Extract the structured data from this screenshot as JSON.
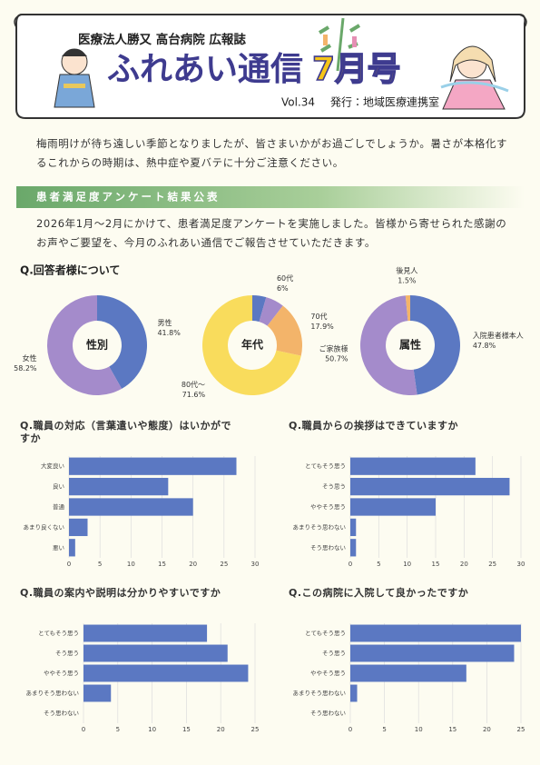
{
  "header": {
    "org": "医療法人勝又 高台病院 広報誌",
    "title": "ふれあい通信",
    "issue": "7月号",
    "volume": "Vol.34",
    "publisher": "発行：地域医療連携室"
  },
  "intro": "梅雨明けが待ち遠しい季節となりましたが、皆さまいかがお過ごしでしょうか。暑さが本格化するこれからの時期は、熱中症や夏バテに十分ご注意ください。",
  "section": {
    "title": "患者満足度アンケート結果公表",
    "text": "2026年1月〜2月にかけて、患者満足度アンケートを実施しました。皆様から寄せられた感謝のお声やご要望を、今月のふれあい通信でご報告させていただきます。",
    "subheading": "Q.回答者様について"
  },
  "chart_data": [
    {
      "type": "pie",
      "title": "性別",
      "categories": [
        "男性",
        "女性"
      ],
      "values": [
        41.8,
        58.2
      ],
      "value_labels": [
        "41.8%",
        "58.2%"
      ],
      "colors": [
        "#5b78c2",
        "#a48bcb"
      ]
    },
    {
      "type": "pie",
      "title": "年代",
      "categories": [
        null,
        "60代",
        "70代",
        "80代～"
      ],
      "values": [
        4.5,
        6,
        17.9,
        71.6
      ],
      "value_labels": [
        null,
        "6%",
        "17.9%",
        "71.6%"
      ],
      "colors": [
        "#5b78c2",
        "#a48bcb",
        "#f3b46a",
        "#f9dc5c"
      ]
    },
    {
      "type": "pie",
      "title": "属性",
      "categories": [
        "入院患者様本人",
        "ご家族様",
        "後見人"
      ],
      "values": [
        47.8,
        50.7,
        1.5
      ],
      "value_labels": [
        "47.8%",
        "50.7%",
        "1.5%"
      ],
      "colors": [
        "#5b78c2",
        "#a48bcb",
        "#f3b46a"
      ]
    },
    {
      "type": "bar",
      "orientation": "horizontal",
      "title": "Q.職員の対応（言葉遣いや態度）はいかがですか",
      "categories": [
        "大変良い",
        "良い",
        "普通",
        "あまり良くない",
        "悪い"
      ],
      "values": [
        27,
        16,
        20,
        3,
        1
      ],
      "color": "#5b78c2",
      "xlim": [
        0,
        30
      ],
      "xticks": [
        0,
        5,
        10,
        15,
        20,
        25,
        30
      ],
      "grid": true
    },
    {
      "type": "bar",
      "orientation": "horizontal",
      "title": "Q.職員からの挨拶はできていますか",
      "categories": [
        "とてもそう思う",
        "そう思う",
        "ややそう思う",
        "あまりそう思わない",
        "そう思わない"
      ],
      "values": [
        22,
        28,
        15,
        1,
        1
      ],
      "color": "#5b78c2",
      "xlim": [
        0,
        30
      ],
      "xticks": [
        0,
        5,
        10,
        15,
        20,
        25,
        30
      ],
      "grid": true
    },
    {
      "type": "bar",
      "orientation": "horizontal",
      "title": "Q.職員の案内や説明は分かりやすいですか",
      "categories": [
        "とてもそう思う",
        "そう思う",
        "ややそう思う",
        "あまりそう思わない",
        "そう思わない"
      ],
      "values": [
        18,
        21,
        24,
        4,
        0
      ],
      "color": "#5b78c2",
      "xlim": [
        0,
        25
      ],
      "xticks": [
        0,
        5,
        10,
        15,
        20,
        25
      ],
      "grid": true
    },
    {
      "type": "bar",
      "orientation": "horizontal",
      "title": "Q.この病院に入院して良かったですか",
      "categories": [
        "とてもそう思う",
        "そう思う",
        "ややそう思う",
        "あまりそう思わない",
        "そう思わない"
      ],
      "values": [
        25,
        24,
        17,
        1,
        0
      ],
      "color": "#5b78c2",
      "xlim": [
        0,
        25
      ],
      "xticks": [
        0,
        5,
        10,
        15,
        20,
        25
      ],
      "grid": true
    }
  ]
}
